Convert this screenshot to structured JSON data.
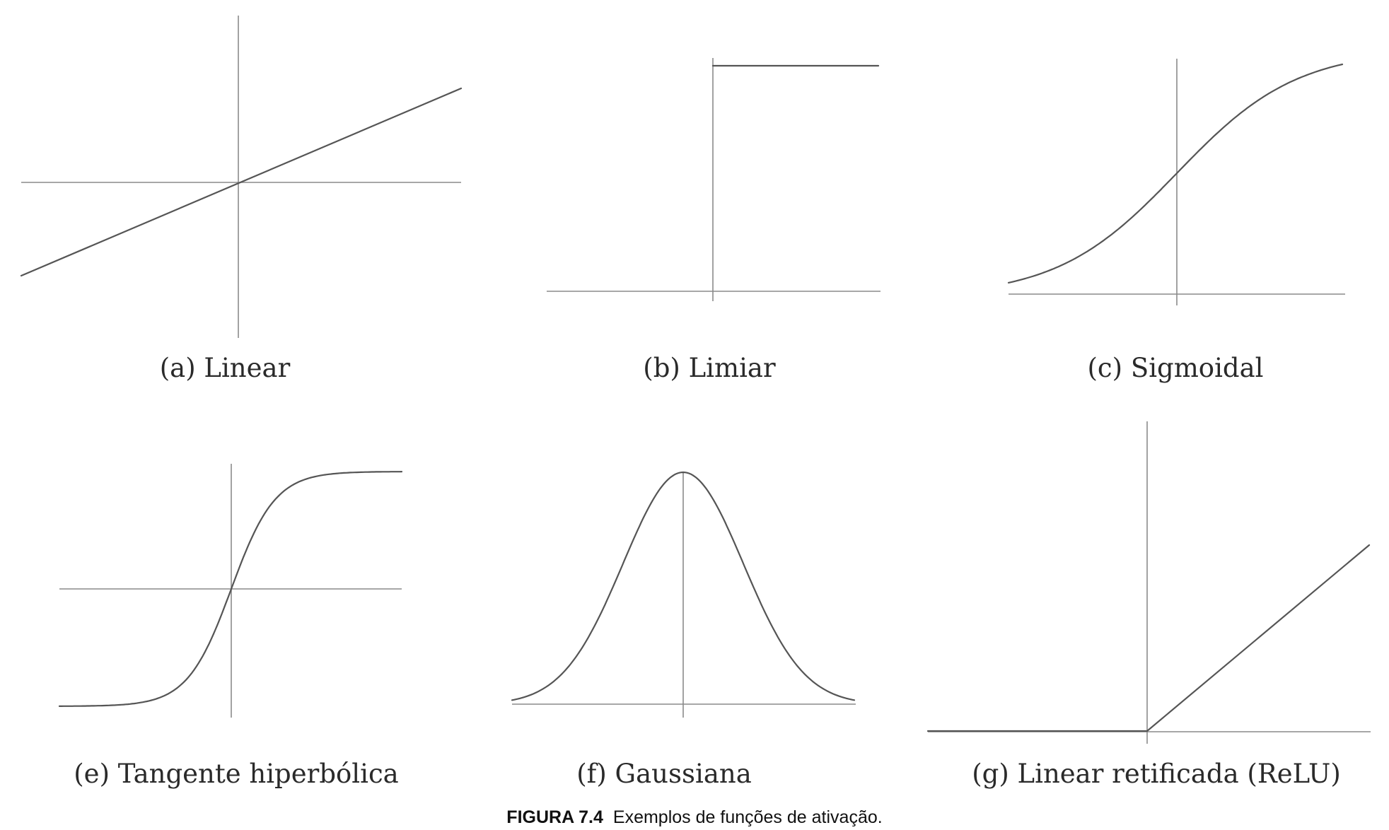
{
  "figure": {
    "caption_label": "FIGURA 7.4",
    "caption_text": "Exemplos de funções de ativação.",
    "panels": [
      {
        "id": "a",
        "label": "(a) Linear",
        "function": "linear"
      },
      {
        "id": "b",
        "label": "(b) Limiar",
        "function": "step"
      },
      {
        "id": "c",
        "label": "(c) Sigmoidal",
        "function": "sigmoid"
      },
      {
        "id": "e",
        "label": "(e) Tangente hiperbólica",
        "function": "tanh"
      },
      {
        "id": "f",
        "label": "(f) Gaussiana",
        "function": "gaussian"
      },
      {
        "id": "g",
        "label": "(g) Linear retificada (ReLU)",
        "function": "relu"
      }
    ]
  }
}
